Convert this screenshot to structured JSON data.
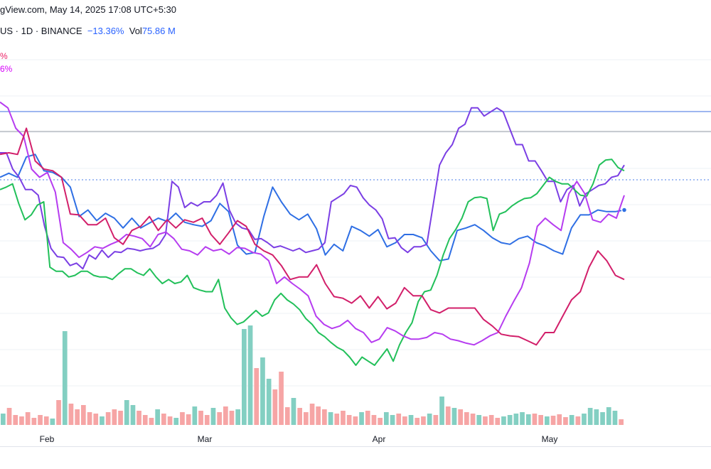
{
  "header": {
    "text": "gView.com, May 14, 2025 17:08 UTC+5:30"
  },
  "legend": {
    "symbol": "US · 1D · BINANCE",
    "change": "−13.36%",
    "vol_label": "Vol",
    "vol_value": "75.86 M"
  },
  "compare": [
    {
      "text": "%",
      "color": "#e91e63"
    },
    {
      "text": "6%",
      "color": "#d500f9"
    }
  ],
  "chart_data": {
    "type": "line",
    "x_ticks": [
      "Feb",
      "Mar",
      "Apr",
      "May"
    ],
    "colors": {
      "blue": "#2f6fe4",
      "purple": "#7b3fe4",
      "green": "#22c05a",
      "magenta": "#b63cf0",
      "crimson": "#d21f6a",
      "vol_up": "#83cfc2",
      "vol_down": "#f6a5a5",
      "grid": "#eef0f4"
    },
    "series": [
      {
        "key": "blue",
        "values": [
          270,
          275,
          270,
          295,
          298,
          278,
          276,
          270,
          258,
          222,
          230,
          217,
          226,
          220,
          208,
          220,
          208,
          214,
          220,
          216,
          226,
          215,
          212,
          210,
          217,
          238,
          228,
          187,
          176,
          178,
          222,
          258,
          240,
          225,
          218,
          225,
          207,
          175,
          188,
          180,
          210,
          205,
          198,
          206,
          185,
          190,
          200,
          200,
          196,
          180,
          168,
          170,
          205,
          208,
          212,
          205,
          196,
          190,
          188,
          195,
          198,
          190,
          186,
          180,
          176,
          208,
          224,
          224,
          230,
          228,
          228,
          230
        ]
      },
      {
        "key": "purple",
        "values": [
          300,
          300,
          280,
          270,
          255,
          255,
          248,
          210,
          183,
          173,
          172,
          162,
          165,
          158,
          175,
          170,
          181,
          172,
          179,
          178,
          183,
          182,
          180,
          182,
          183,
          188,
          200,
          265,
          258,
          233,
          239,
          235,
          240,
          240,
          248,
          263,
          230,
          214,
          208,
          206,
          194,
          195,
          190,
          184,
          186,
          183,
          180,
          183,
          178,
          180,
          182,
          190,
          240,
          245,
          250,
          260,
          258,
          245,
          236,
          230,
          219,
          195,
          196,
          184,
          178,
          185,
          185,
          188,
          236,
          285,
          300,
          310,
          330,
          335,
          355,
          355,
          345,
          350,
          355,
          350,
          330,
          310,
          310,
          290,
          290,
          278,
          265,
          265,
          240,
          255,
          260,
          235,
          250,
          255,
          260,
          262,
          270,
          272,
          285
        ]
      },
      {
        "key": "green",
        "values": [
          255,
          258,
          262,
          238,
          218,
          224,
          236,
          240,
          160,
          155,
          155,
          148,
          150,
          155,
          155,
          150,
          148,
          148,
          145,
          152,
          158,
          158,
          153,
          150,
          158,
          148,
          140,
          145,
          140,
          142,
          150,
          135,
          132,
          130,
          130,
          145,
          110,
          98,
          90,
          93,
          100,
          107,
          100,
          104,
          120,
          128,
          120,
          115,
          108,
          97,
          90,
          80,
          75,
          68,
          62,
          58,
          50,
          40,
          50,
          45,
          40,
          50,
          60,
          45,
          65,
          80,
          92,
          118,
          130,
          132,
          150,
          175,
          195,
          206,
          220,
          240,
          245,
          246,
          244,
          205,
          225,
          228,
          235,
          240,
          244,
          245,
          250,
          260,
          270,
          265,
          262,
          262,
          255,
          248,
          247,
          262,
          285,
          291,
          292,
          282,
          278
        ]
      },
      {
        "key": "magenta",
        "values": [
          362,
          355,
          330,
          320,
          280,
          270,
          276,
          252,
          190,
          182,
          172,
          178,
          185,
          183,
          188,
          192,
          200,
          198,
          195,
          185,
          200,
          203,
          195,
          182,
          180,
          175,
          185,
          180,
          182,
          176,
          184,
          183,
          178,
          176,
          168,
          140,
          148,
          140,
          133,
          125,
          100,
          90,
          85,
          88,
          95,
          85,
          80,
          68,
          72,
          86,
          82,
          76,
          72,
          72,
          74,
          80,
          78,
          72,
          70,
          67,
          65,
          70,
          76,
          80,
          100,
          118,
          135,
          165,
          210,
          220,
          212,
          205,
          250,
          265,
          250,
          218,
          215,
          225,
          220,
          248
        ]
      },
      {
        "key": "crimson",
        "values": [
          298,
          300,
          298,
          330,
          290,
          280,
          278,
          270,
          225,
          224,
          212,
          212,
          220,
          196,
          188,
          205,
          210,
          222,
          205,
          218,
          208,
          218,
          215,
          220,
          200,
          188,
          202,
          217,
          210,
          188,
          180,
          175,
          162,
          145,
          148,
          148,
          163,
          140,
          124,
          122,
          116,
          125,
          110,
          124,
          109,
          116,
          135,
          125,
          125,
          108,
          104,
          110,
          110,
          110,
          110,
          96,
          88,
          78,
          76,
          75,
          70,
          65,
          80,
          80,
          100,
          120,
          130,
          160,
          180,
          168,
          150,
          145
        ]
      }
    ],
    "volume": [
      {
        "v": 16,
        "up": true
      },
      {
        "v": 24,
        "up": false
      },
      {
        "v": 14,
        "up": false
      },
      {
        "v": 12,
        "up": false
      },
      {
        "v": 18,
        "up": false
      },
      {
        "v": 10,
        "up": false
      },
      {
        "v": 14,
        "up": false
      },
      {
        "v": 12,
        "up": false
      },
      {
        "v": 9,
        "up": true
      },
      {
        "v": 35,
        "up": false
      },
      {
        "v": 132,
        "up": true
      },
      {
        "v": 30,
        "up": false
      },
      {
        "v": 22,
        "up": false
      },
      {
        "v": 28,
        "up": false
      },
      {
        "v": 18,
        "up": false
      },
      {
        "v": 16,
        "up": false
      },
      {
        "v": 12,
        "up": true
      },
      {
        "v": 18,
        "up": false
      },
      {
        "v": 22,
        "up": false
      },
      {
        "v": 20,
        "up": false
      },
      {
        "v": 35,
        "up": true
      },
      {
        "v": 28,
        "up": true
      },
      {
        "v": 20,
        "up": false
      },
      {
        "v": 14,
        "up": false
      },
      {
        "v": 10,
        "up": false
      },
      {
        "v": 22,
        "up": true
      },
      {
        "v": 16,
        "up": false
      },
      {
        "v": 12,
        "up": false
      },
      {
        "v": 10,
        "up": true
      },
      {
        "v": 18,
        "up": false
      },
      {
        "v": 15,
        "up": false
      },
      {
        "v": 26,
        "up": true
      },
      {
        "v": 20,
        "up": false
      },
      {
        "v": 14,
        "up": false
      },
      {
        "v": 24,
        "up": true
      },
      {
        "v": 18,
        "up": false
      },
      {
        "v": 26,
        "up": false
      },
      {
        "v": 20,
        "up": false
      },
      {
        "v": 22,
        "up": true
      },
      {
        "v": 135,
        "up": true
      },
      {
        "v": 140,
        "up": true
      },
      {
        "v": 80,
        "up": false
      },
      {
        "v": 95,
        "up": true
      },
      {
        "v": 65,
        "up": true
      },
      {
        "v": 50,
        "up": false
      },
      {
        "v": 75,
        "up": false
      },
      {
        "v": 25,
        "up": false
      },
      {
        "v": 38,
        "up": true
      },
      {
        "v": 24,
        "up": false
      },
      {
        "v": 18,
        "up": false
      },
      {
        "v": 30,
        "up": false
      },
      {
        "v": 26,
        "up": false
      },
      {
        "v": 22,
        "up": false
      },
      {
        "v": 18,
        "up": true
      },
      {
        "v": 16,
        "up": false
      },
      {
        "v": 20,
        "up": false
      },
      {
        "v": 14,
        "up": false
      },
      {
        "v": 12,
        "up": false
      },
      {
        "v": 18,
        "up": true
      },
      {
        "v": 20,
        "up": false
      },
      {
        "v": 14,
        "up": false
      },
      {
        "v": 10,
        "up": false
      },
      {
        "v": 18,
        "up": true
      },
      {
        "v": 14,
        "up": true
      },
      {
        "v": 16,
        "up": false
      },
      {
        "v": 12,
        "up": false
      },
      {
        "v": 14,
        "up": true
      },
      {
        "v": 10,
        "up": false
      },
      {
        "v": 12,
        "up": false
      },
      {
        "v": 16,
        "up": true
      },
      {
        "v": 14,
        "up": false
      },
      {
        "v": 40,
        "up": true
      },
      {
        "v": 26,
        "up": false
      },
      {
        "v": 24,
        "up": true
      },
      {
        "v": 22,
        "up": false
      },
      {
        "v": 18,
        "up": false
      },
      {
        "v": 16,
        "up": false
      },
      {
        "v": 14,
        "up": true
      },
      {
        "v": 12,
        "up": false
      },
      {
        "v": 14,
        "up": false
      },
      {
        "v": 10,
        "up": false
      },
      {
        "v": 12,
        "up": true
      },
      {
        "v": 14,
        "up": true
      },
      {
        "v": 16,
        "up": true
      },
      {
        "v": 18,
        "up": true
      },
      {
        "v": 15,
        "up": true
      },
      {
        "v": 16,
        "up": false
      },
      {
        "v": 14,
        "up": false
      },
      {
        "v": 12,
        "up": true
      },
      {
        "v": 13,
        "up": false
      },
      {
        "v": 15,
        "up": false
      },
      {
        "v": 11,
        "up": false
      },
      {
        "v": 14,
        "up": true
      },
      {
        "v": 12,
        "up": false
      },
      {
        "v": 16,
        "up": true
      },
      {
        "v": 24,
        "up": true
      },
      {
        "v": 22,
        "up": true
      },
      {
        "v": 18,
        "up": true
      },
      {
        "v": 25,
        "up": true
      },
      {
        "v": 20,
        "up": true
      },
      {
        "v": 8,
        "up": false
      }
    ]
  }
}
